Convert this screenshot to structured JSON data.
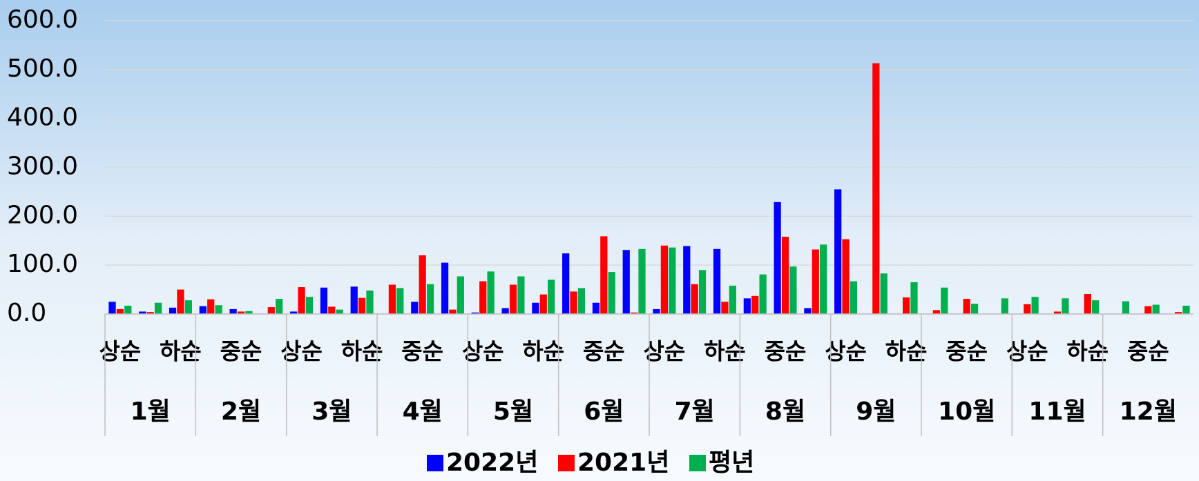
{
  "chart_data": {
    "type": "bar",
    "categories": [
      "상순",
      null,
      "하순",
      null,
      "중순",
      null,
      "상순",
      null,
      "하순",
      null,
      "중순",
      null,
      "상순",
      null,
      "하순",
      null,
      "중순",
      null,
      "상순",
      null,
      "하순",
      null,
      "중순",
      null,
      "상순",
      null,
      "하순",
      null,
      "중순",
      null,
      "상순",
      null,
      "하순",
      null,
      "중순",
      null
    ],
    "groups": [
      "1월",
      "2월",
      "3월",
      "4월",
      "5월",
      "6월",
      "7월",
      "8월",
      "9월",
      "10월",
      "11월",
      "12월"
    ],
    "series": [
      {
        "name": "2022년",
        "color": "#0000ff",
        "values": [
          25,
          5,
          13,
          16,
          10,
          0,
          5,
          54,
          56,
          0,
          25,
          105,
          3,
          12,
          23,
          124,
          23,
          131,
          10,
          139,
          133,
          32,
          229,
          12,
          255,
          0,
          0,
          0,
          0,
          0,
          0,
          0,
          0,
          0,
          0,
          0
        ]
      },
      {
        "name": "2021년",
        "color": "#ff0000",
        "values": [
          10,
          4,
          50,
          30,
          5,
          14,
          55,
          15,
          33,
          60,
          120,
          9,
          67,
          60,
          40,
          46,
          159,
          3,
          140,
          61,
          25,
          37,
          158,
          132,
          153,
          513,
          34,
          8,
          31,
          0,
          20,
          5,
          41,
          0,
          16,
          4
        ]
      },
      {
        "name": "평년",
        "color": "#00b050",
        "values": [
          17,
          23,
          28,
          18,
          6,
          31,
          35,
          9,
          48,
          53,
          61,
          77,
          87,
          77,
          70,
          53,
          86,
          133,
          136,
          90,
          58,
          81,
          97,
          142,
          67,
          83,
          65,
          54,
          21,
          32,
          35,
          32,
          28,
          26,
          19,
          17
        ]
      }
    ],
    "ylim": [
      0,
      600
    ],
    "yticks": [
      {
        "value": 0,
        "label": "0.0"
      },
      {
        "value": 100,
        "label": "100.0"
      },
      {
        "value": 200,
        "label": "200.0"
      },
      {
        "value": 300,
        "label": "300.0"
      },
      {
        "value": 400,
        "label": "400.0"
      },
      {
        "value": 500,
        "label": "500.0"
      },
      {
        "value": 600,
        "label": "600.0"
      }
    ],
    "grid": true,
    "legend": "bottom"
  }
}
